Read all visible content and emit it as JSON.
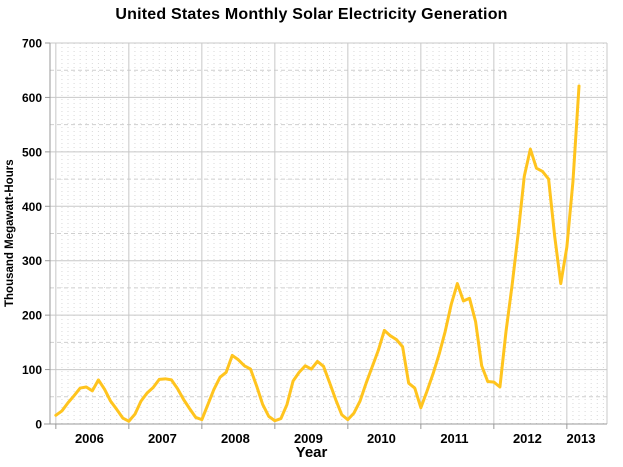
{
  "chart_data": {
    "type": "line",
    "title": "United States Monthly Solar Electricity Generation",
    "xlabel": "Year",
    "ylabel": "Thousand Megawatt-Hours",
    "unit": "thousand megawatt-hours",
    "ylim": [
      0,
      700
    ],
    "y_major_step": 100,
    "y_minor_step": 50,
    "xlim_years": [
      2005.92,
      2013.55
    ],
    "x_start_year": 2006,
    "points_per_year": 12,
    "x_tick_labels": [
      "2006",
      "2007",
      "2008",
      "2009",
      "2010",
      "2011",
      "2012",
      "2013"
    ],
    "grid": true,
    "legend_position": "none",
    "line_color": "#FFC41E",
    "series": [
      {
        "name": "Monthly solar electricity generation",
        "values_by_year": [
          {
            "year": 2006,
            "values": [
              16,
              24,
              39,
              52,
              66,
              68,
              61,
              81,
              64,
              42,
              27,
              11
            ]
          },
          {
            "year": 2007,
            "values": [
              5,
              18,
              42,
              57,
              67,
              82,
              83,
              81,
              65,
              45,
              28,
              12
            ]
          },
          {
            "year": 2008,
            "values": [
              8,
              36,
              64,
              86,
              95,
              126,
              118,
              107,
              101,
              70,
              36,
              14
            ]
          },
          {
            "year": 2009,
            "values": [
              6,
              10,
              36,
              79,
              95,
              107,
              101,
              115,
              106,
              76,
              45,
              17
            ]
          },
          {
            "year": 2010,
            "values": [
              8,
              20,
              42,
              75,
              105,
              135,
              172,
              162,
              155,
              142,
              75,
              66
            ]
          },
          {
            "year": 2011,
            "values": [
              30,
              60,
              92,
              128,
              170,
              220,
              258,
              226,
              231,
              188,
              107,
              78
            ]
          },
          {
            "year": 2012,
            "values": [
              77,
              68,
              170,
              255,
              350,
              455,
              505,
              470,
              464,
              450,
              345,
              258
            ]
          },
          {
            "year": 2013,
            "values": [
              325,
              445,
              621
            ]
          }
        ]
      }
    ]
  }
}
